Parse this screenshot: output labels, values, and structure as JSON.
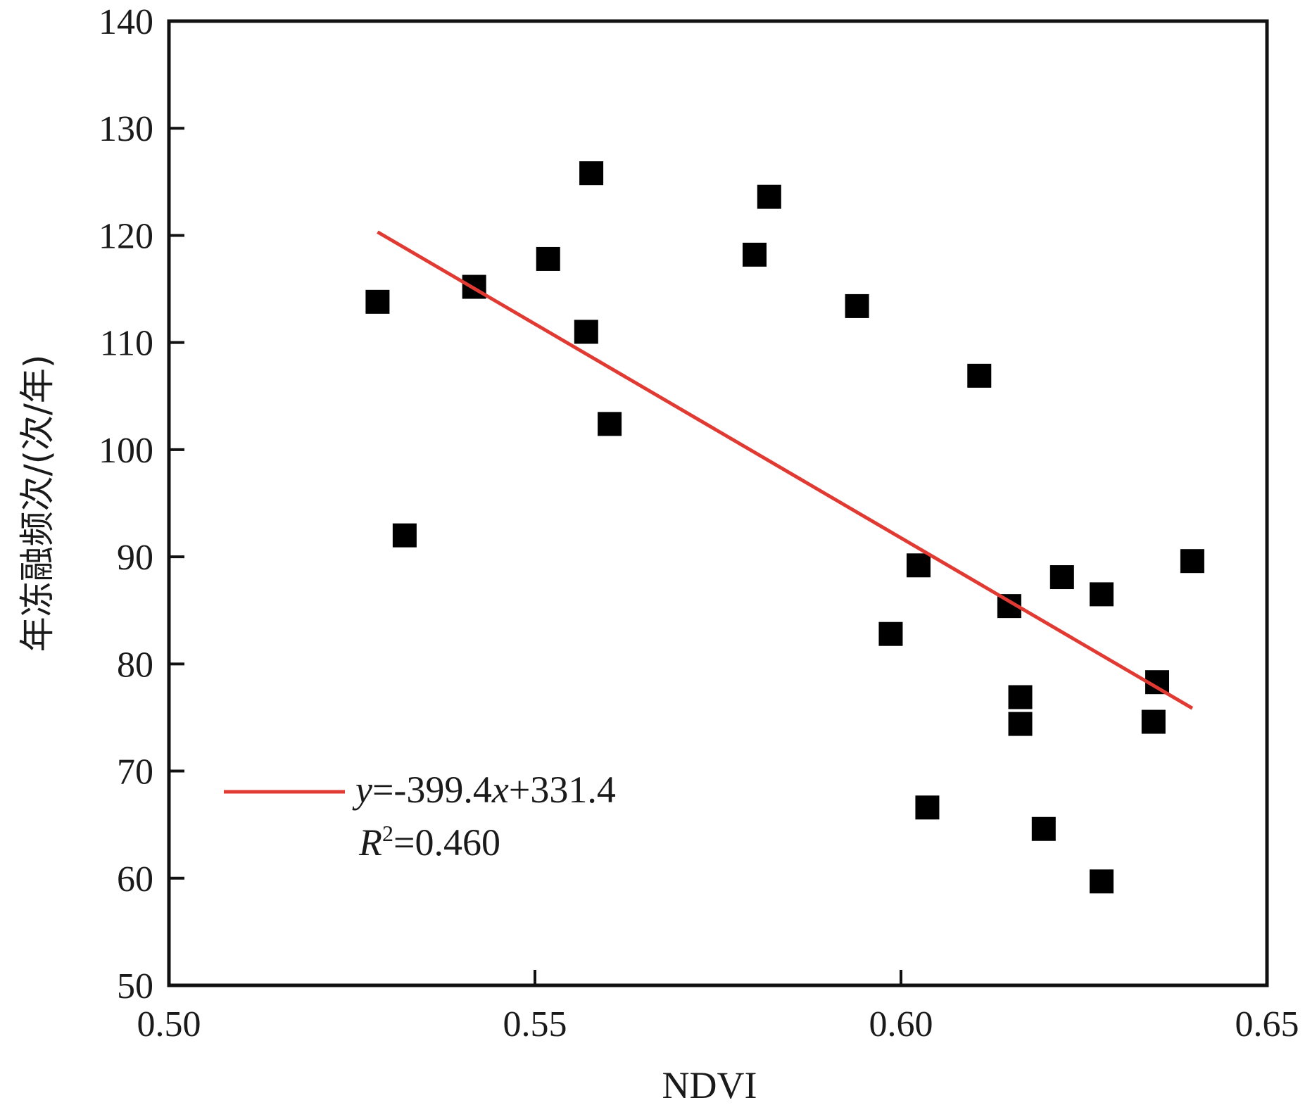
{
  "chart_data": {
    "type": "scatter",
    "xlabel": "NDVI",
    "ylabel": "年冻融频次/(次/年)",
    "xlim": [
      0.5,
      0.65
    ],
    "ylim": [
      50,
      140
    ],
    "xticks": [
      "0.50",
      "0.55",
      "0.60",
      "0.65"
    ],
    "xtick_values": [
      0.5,
      0.55,
      0.6,
      0.65
    ],
    "yticks": [
      "50",
      "60",
      "70",
      "80",
      "90",
      "100",
      "110",
      "120",
      "130",
      "140"
    ],
    "ytick_values": [
      50,
      60,
      70,
      80,
      90,
      100,
      110,
      120,
      130,
      140
    ],
    "grid": false,
    "points": [
      {
        "x": 0.5285,
        "y": 113.8
      },
      {
        "x": 0.5322,
        "y": 92.0
      },
      {
        "x": 0.5417,
        "y": 115.2
      },
      {
        "x": 0.5518,
        "y": 117.8
      },
      {
        "x": 0.557,
        "y": 111.0
      },
      {
        "x": 0.5577,
        "y": 125.8
      },
      {
        "x": 0.5602,
        "y": 102.4
      },
      {
        "x": 0.58,
        "y": 118.2
      },
      {
        "x": 0.582,
        "y": 123.6
      },
      {
        "x": 0.594,
        "y": 113.4
      },
      {
        "x": 0.5986,
        "y": 82.8
      },
      {
        "x": 0.6024,
        "y": 89.2
      },
      {
        "x": 0.6036,
        "y": 66.6
      },
      {
        "x": 0.6107,
        "y": 106.9
      },
      {
        "x": 0.6148,
        "y": 85.4
      },
      {
        "x": 0.6163,
        "y": 76.9
      },
      {
        "x": 0.6163,
        "y": 74.4
      },
      {
        "x": 0.6195,
        "y": 64.6
      },
      {
        "x": 0.622,
        "y": 88.1
      },
      {
        "x": 0.6274,
        "y": 86.5
      },
      {
        "x": 0.6274,
        "y": 59.7
      },
      {
        "x": 0.6345,
        "y": 74.6
      },
      {
        "x": 0.635,
        "y": 78.3
      },
      {
        "x": 0.6398,
        "y": 89.6
      }
    ],
    "fit_line": {
      "slope": -399.4,
      "intercept": 331.4,
      "x_range": [
        0.5285,
        0.6398
      ],
      "color": "#e03a33"
    },
    "legend": {
      "position": "bottom-left",
      "line_color": "#e03a33"
    },
    "equation": {
      "y": "y",
      "mid": "=-399.4",
      "x": "x",
      "tail": "+331.4"
    },
    "r2": {
      "r": "R",
      "sup": "2",
      "tail": "=0.460"
    }
  }
}
